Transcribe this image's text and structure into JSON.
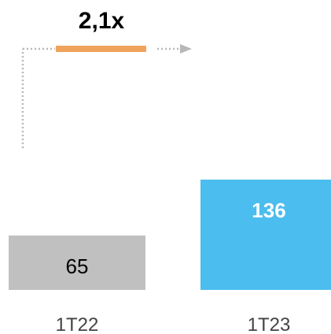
{
  "chart_data": {
    "type": "bar",
    "categories": [
      "1T22",
      "1T23"
    ],
    "values": [
      65,
      136
    ],
    "value_labels": [
      "65",
      "136"
    ],
    "bar_colors": [
      "#c0c0c0",
      "#4bbdee"
    ],
    "label_colors": [
      "#000000",
      "#ffffff"
    ],
    "growth_label": "2,1x",
    "growth_marker_color": "#f0a35c",
    "connector_color": "#b8b8b8",
    "grid": false,
    "title": "",
    "xlabel": "",
    "ylabel": ""
  }
}
